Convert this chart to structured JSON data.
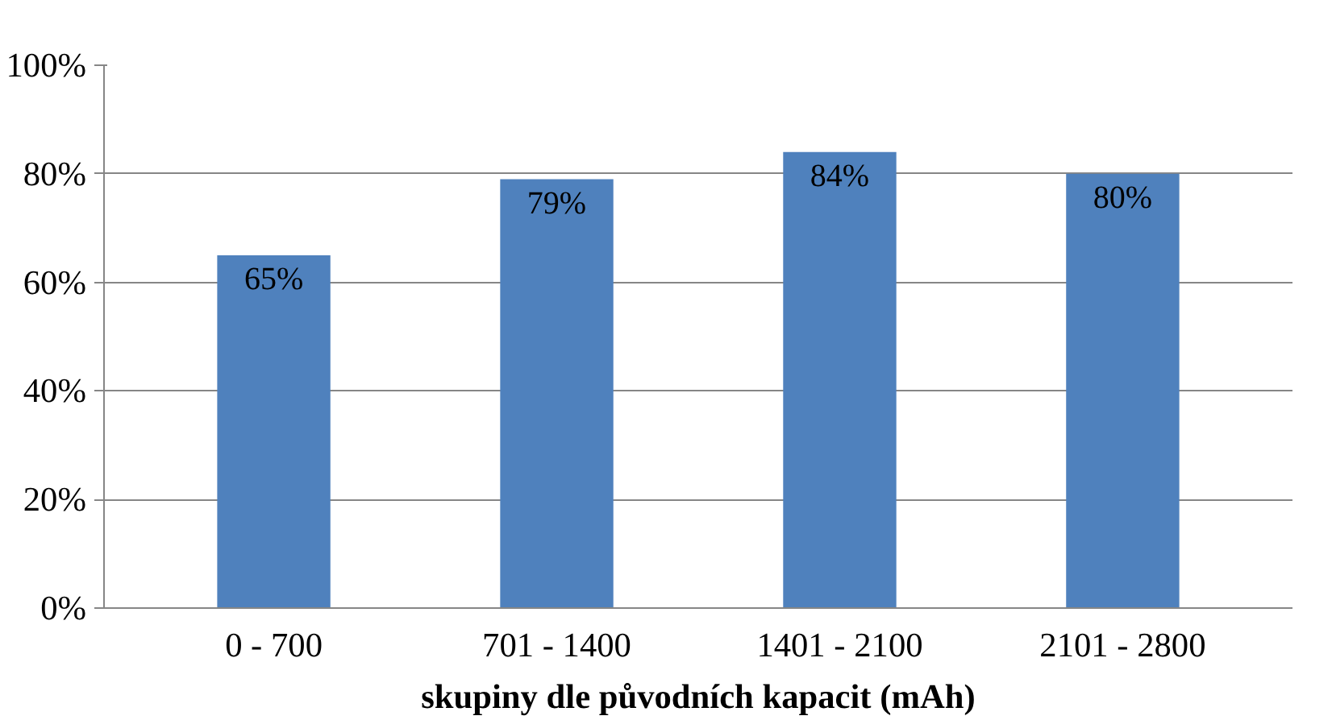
{
  "chart_data": {
    "type": "bar",
    "xlabel": "skupiny dle původních kapacit (mAh)",
    "categories": [
      "0 - 700",
      "701 - 1400",
      "1401 - 2100",
      "2101 - 2800"
    ],
    "values": [
      65,
      79,
      84,
      80
    ],
    "value_labels": [
      "65%",
      "79%",
      "84%",
      "80%"
    ],
    "color": "#4f81bd",
    "ylim": [
      0,
      100
    ],
    "yticks": [
      {
        "value": 0,
        "label": "0%"
      },
      {
        "value": 20,
        "label": "20%"
      },
      {
        "value": 40,
        "label": "40%"
      },
      {
        "value": 60,
        "label": "60%"
      },
      {
        "value": 80,
        "label": "80%"
      },
      {
        "value": 100,
        "label": "100%"
      }
    ],
    "grid": "y"
  }
}
